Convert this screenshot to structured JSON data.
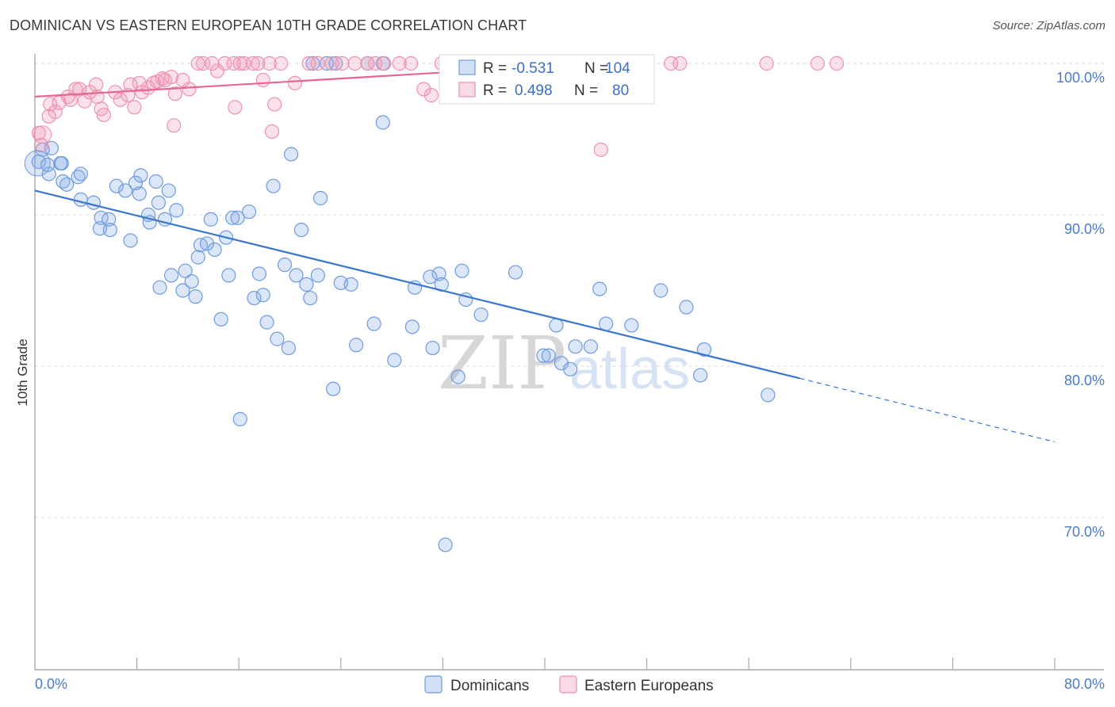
{
  "title": "DOMINICAN VS EASTERN EUROPEAN 10TH GRADE CORRELATION CHART",
  "source": "Source: ZipAtlas.com",
  "watermark": {
    "zip": "ZIP",
    "atlas": "atlas"
  },
  "chart_data": {
    "type": "scatter",
    "title": "DOMINICAN VS EASTERN EUROPEAN 10TH GRADE CORRELATION CHART",
    "xlabel": "",
    "ylabel": "10th Grade",
    "xlim": [
      0,
      80
    ],
    "ylim": [
      60,
      101
    ],
    "x_tick_labels": [
      "0.0%",
      "80.0%"
    ],
    "y_ticks": [
      70,
      80,
      90,
      100
    ],
    "y_tick_labels": [
      "70.0%",
      "80.0%",
      "90.0%",
      "100.0%"
    ],
    "legend": {
      "r_label": "R =",
      "n_label": "N =",
      "entries": [
        {
          "name": "Dominicans",
          "r": "-0.531",
          "n": "104"
        },
        {
          "name": "Eastern Europeans",
          "r": "0.498",
          "n": "80"
        }
      ]
    },
    "series": [
      {
        "name": "Dominicans",
        "color": "#6f9be0",
        "fill": "rgba(125,165,230,0.28)",
        "trend": {
          "x0": 0,
          "y0": 91.6,
          "x1": 60,
          "y1": 79.2,
          "dash_to_x": 80,
          "dash_to_y": 75.0
        },
        "points": [
          [
            0.3,
            93.5
          ],
          [
            0.6,
            94.3
          ],
          [
            1.0,
            93.3
          ],
          [
            1.1,
            92.7
          ],
          [
            1.3,
            94.4
          ],
          [
            2.0,
            93.4
          ],
          [
            2.1,
            93.4
          ],
          [
            2.2,
            92.2
          ],
          [
            2.5,
            92.0
          ],
          [
            3.4,
            92.5
          ],
          [
            3.6,
            92.7
          ],
          [
            4.6,
            90.8
          ],
          [
            3.6,
            91.0
          ],
          [
            5.2,
            89.8
          ],
          [
            5.1,
            89.1
          ],
          [
            5.8,
            89.7
          ],
          [
            5.9,
            89.0
          ],
          [
            6.4,
            91.9
          ],
          [
            7.1,
            91.6
          ],
          [
            7.5,
            88.3
          ],
          [
            8.2,
            91.4
          ],
          [
            7.9,
            92.1
          ],
          [
            8.9,
            90.0
          ],
          [
            8.3,
            92.6
          ],
          [
            9.0,
            89.5
          ],
          [
            9.5,
            92.2
          ],
          [
            9.7,
            90.8
          ],
          [
            10.2,
            89.7
          ],
          [
            10.5,
            91.6
          ],
          [
            11.1,
            90.3
          ],
          [
            9.8,
            85.2
          ],
          [
            10.7,
            86.0
          ],
          [
            11.8,
            86.3
          ],
          [
            11.6,
            85.0
          ],
          [
            12.3,
            85.6
          ],
          [
            12.6,
            84.6
          ],
          [
            12.8,
            87.2
          ],
          [
            13.0,
            88.0
          ],
          [
            13.5,
            88.1
          ],
          [
            14.1,
            87.7
          ],
          [
            13.8,
            89.7
          ],
          [
            14.6,
            83.1
          ],
          [
            15.0,
            88.5
          ],
          [
            15.2,
            86.0
          ],
          [
            15.5,
            89.8
          ],
          [
            15.9,
            89.8
          ],
          [
            16.8,
            90.2
          ],
          [
            17.2,
            84.5
          ],
          [
            17.6,
            86.1
          ],
          [
            17.9,
            84.7
          ],
          [
            18.2,
            82.9
          ],
          [
            18.7,
            91.9
          ],
          [
            19.0,
            81.8
          ],
          [
            19.6,
            86.7
          ],
          [
            19.9,
            81.2
          ],
          [
            20.1,
            94.0
          ],
          [
            20.5,
            86.0
          ],
          [
            20.9,
            89.0
          ],
          [
            21.3,
            85.4
          ],
          [
            21.6,
            84.5
          ],
          [
            22.2,
            86.0
          ],
          [
            22.4,
            91.1
          ],
          [
            23.4,
            78.5
          ],
          [
            24.0,
            85.5
          ],
          [
            24.8,
            85.4
          ],
          [
            25.2,
            81.4
          ],
          [
            26.6,
            82.8
          ],
          [
            27.3,
            96.1
          ],
          [
            28.2,
            80.4
          ],
          [
            29.6,
            82.6
          ],
          [
            29.8,
            85.2
          ],
          [
            31.0,
            85.9
          ],
          [
            31.2,
            81.2
          ],
          [
            31.7,
            86.1
          ],
          [
            31.9,
            85.4
          ],
          [
            33.2,
            79.3
          ],
          [
            33.5,
            86.3
          ],
          [
            33.8,
            84.4
          ],
          [
            35.0,
            83.4
          ],
          [
            37.7,
            86.2
          ],
          [
            39.9,
            80.7
          ],
          [
            40.3,
            80.7
          ],
          [
            40.9,
            82.7
          ],
          [
            41.3,
            80.2
          ],
          [
            42.0,
            79.8
          ],
          [
            42.4,
            81.3
          ],
          [
            43.6,
            81.3
          ],
          [
            44.3,
            85.1
          ],
          [
            44.8,
            82.8
          ],
          [
            46.8,
            82.7
          ],
          [
            49.1,
            85.0
          ],
          [
            51.1,
            83.9
          ],
          [
            52.2,
            79.4
          ],
          [
            52.5,
            81.1
          ],
          [
            57.5,
            78.1
          ],
          [
            16.1,
            76.5
          ],
          [
            32.2,
            68.2
          ],
          [
            23.6,
            100.0
          ],
          [
            22.9,
            100.0
          ],
          [
            21.8,
            100.0
          ],
          [
            27.3,
            100.0
          ],
          [
            26.1,
            100.0
          ],
          [
            35.5,
            100.0
          ],
          [
            43.8,
            100.0
          ]
        ]
      },
      {
        "name": "Eastern Europeans",
        "color": "#ee92ad",
        "fill": "rgba(240,150,180,0.28)",
        "trend": {
          "x0": 0,
          "y0": 97.8,
          "x1": 48,
          "y1": 100.2,
          "dash_to_x": 48,
          "dash_to_y": 100.2
        },
        "points": [
          [
            0.3,
            95.4
          ],
          [
            0.5,
            94.6
          ],
          [
            1.2,
            97.3
          ],
          [
            1.6,
            96.8
          ],
          [
            1.9,
            97.4
          ],
          [
            1.1,
            96.5
          ],
          [
            2.6,
            97.8
          ],
          [
            2.8,
            97.6
          ],
          [
            3.2,
            98.3
          ],
          [
            3.5,
            98.3
          ],
          [
            3.9,
            97.5
          ],
          [
            4.3,
            98.1
          ],
          [
            4.8,
            98.6
          ],
          [
            4.9,
            97.8
          ],
          [
            5.2,
            97.0
          ],
          [
            5.4,
            96.6
          ],
          [
            6.3,
            98.1
          ],
          [
            6.7,
            97.6
          ],
          [
            7.3,
            97.9
          ],
          [
            7.5,
            98.6
          ],
          [
            7.8,
            97.1
          ],
          [
            8.4,
            98.1
          ],
          [
            8.9,
            98.4
          ],
          [
            8.2,
            98.7
          ],
          [
            9.3,
            98.7
          ],
          [
            9.6,
            98.8
          ],
          [
            10.0,
            99.0
          ],
          [
            10.2,
            98.9
          ],
          [
            10.7,
            99.1
          ],
          [
            11.0,
            98.0
          ],
          [
            11.6,
            98.9
          ],
          [
            10.9,
            95.9
          ],
          [
            12.1,
            98.3
          ],
          [
            12.8,
            100.0
          ],
          [
            13.2,
            100.0
          ],
          [
            13.9,
            100.0
          ],
          [
            14.3,
            99.5
          ],
          [
            14.9,
            100.0
          ],
          [
            15.6,
            100.0
          ],
          [
            16.1,
            100.0
          ],
          [
            15.7,
            97.1
          ],
          [
            16.4,
            100.0
          ],
          [
            17.1,
            100.0
          ],
          [
            17.5,
            100.0
          ],
          [
            17.9,
            98.9
          ],
          [
            18.4,
            100.0
          ],
          [
            18.8,
            97.3
          ],
          [
            18.6,
            95.5
          ],
          [
            19.3,
            100.0
          ],
          [
            20.4,
            98.7
          ],
          [
            21.5,
            100.0
          ],
          [
            22.2,
            100.0
          ],
          [
            23.3,
            100.0
          ],
          [
            24.1,
            100.0
          ],
          [
            25.1,
            100.0
          ],
          [
            26.1,
            100.0
          ],
          [
            26.7,
            100.0
          ],
          [
            27.4,
            100.0
          ],
          [
            28.6,
            100.0
          ],
          [
            29.5,
            100.0
          ],
          [
            30.5,
            98.3
          ],
          [
            31.1,
            97.9
          ],
          [
            31.9,
            100.0
          ],
          [
            32.7,
            100.0
          ],
          [
            33.4,
            100.0
          ],
          [
            34.6,
            100.0
          ],
          [
            35.8,
            100.0
          ],
          [
            36.4,
            100.0
          ],
          [
            37.7,
            100.0
          ],
          [
            39.1,
            100.0
          ],
          [
            40.5,
            100.0
          ],
          [
            42.1,
            100.0
          ],
          [
            43.4,
            100.0
          ],
          [
            44.4,
            94.3
          ],
          [
            47.8,
            100.0
          ],
          [
            49.9,
            100.0
          ],
          [
            50.6,
            100.0
          ],
          [
            57.4,
            100.0
          ],
          [
            61.4,
            100.0
          ],
          [
            62.9,
            100.0
          ]
        ]
      }
    ]
  },
  "colors": {
    "blue": "#3b77cc",
    "pink": "#e8678f",
    "tick_text": "#4a7cc7",
    "grid": "#dedede"
  }
}
